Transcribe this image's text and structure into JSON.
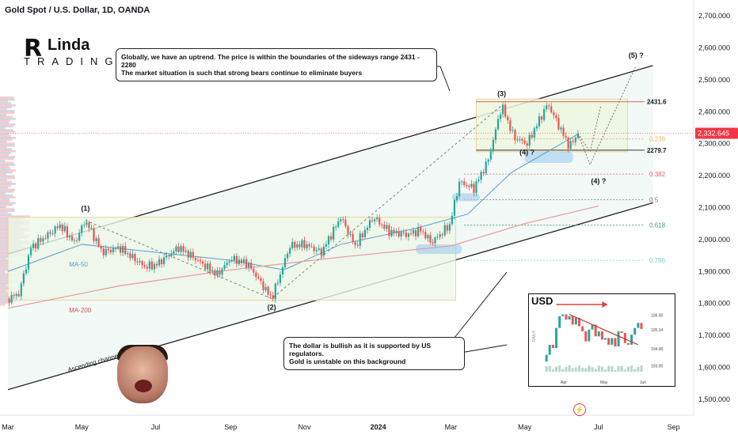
{
  "header": {
    "title": "Gold Spot / U.S. Dollar, 1D, OANDA"
  },
  "brand": {
    "logo_r": "R",
    "logo_inda": "Linda",
    "logo_trading": "TRADING"
  },
  "callouts": {
    "top_line1": "Globally, we have an uptrend. The price is within the boundaries of the sideways range 2431 - 2280",
    "top_line2": "The market situation is such that strong bears continue to eliminate buyers",
    "bottom_line1": "The dollar is bullish as it is supported by US regulators.",
    "bottom_line2": "Gold is unstable on this background"
  },
  "colors": {
    "up": "#26a69a",
    "down": "#ef5350",
    "price_tag": "#f23645",
    "ma50": "#5b9bd5",
    "ma200": "#e5a3a3"
  },
  "chart_data": {
    "type": "candlestick",
    "instrument": "Gold Spot / U.S. Dollar",
    "timeframe": "1D",
    "source": "OANDA",
    "ylim": [
      1450,
      2750
    ],
    "yticks": [
      1500,
      1600,
      1700,
      1800,
      1900,
      2000,
      2100,
      2200,
      2300,
      2400,
      2500,
      2600,
      2700
    ],
    "ytick_labels": [
      "1,500.000",
      "1,600.000",
      "1,700.000",
      "1,800.000",
      "1,900.000",
      "2,000.000",
      "2,100.000",
      "2,200.000",
      "2,300.000",
      "2,400.000",
      "2,500.000",
      "2,600.000",
      "2,700.000"
    ],
    "xlim": [
      "2023-03-01",
      "2024-09-15"
    ],
    "xticks": [
      {
        "date": "2023-03-01",
        "label": "Mar"
      },
      {
        "date": "2023-05-01",
        "label": "May"
      },
      {
        "date": "2023-07-01",
        "label": "Jul"
      },
      {
        "date": "2023-09-01",
        "label": "Sep"
      },
      {
        "date": "2023-11-01",
        "label": "Nov"
      },
      {
        "date": "2024-01-01",
        "label": "2024"
      },
      {
        "date": "2024-03-01",
        "label": "Mar"
      },
      {
        "date": "2024-05-01",
        "label": "May"
      },
      {
        "date": "2024-07-01",
        "label": "Jul"
      },
      {
        "date": "2024-09-01",
        "label": "Sep"
      }
    ],
    "price_path": [
      [
        "2023-03-01",
        1815
      ],
      [
        "2023-03-10",
        1830
      ],
      [
        "2023-03-20",
        1975
      ],
      [
        "2023-04-05",
        2020
      ],
      [
        "2023-04-13",
        2045
      ],
      [
        "2023-04-25",
        1990
      ],
      [
        "2023-05-04",
        2060
      ],
      [
        "2023-05-18",
        1960
      ],
      [
        "2023-06-01",
        1975
      ],
      [
        "2023-06-22",
        1915
      ],
      [
        "2023-07-01",
        1920
      ],
      [
        "2023-07-20",
        1975
      ],
      [
        "2023-08-01",
        1945
      ],
      [
        "2023-08-21",
        1890
      ],
      [
        "2023-09-01",
        1940
      ],
      [
        "2023-09-15",
        1925
      ],
      [
        "2023-10-05",
        1815
      ],
      [
        "2023-10-20",
        1980
      ],
      [
        "2023-11-01",
        1985
      ],
      [
        "2023-11-15",
        1960
      ],
      [
        "2023-12-01",
        2070
      ],
      [
        "2023-12-13",
        1980
      ],
      [
        "2023-12-28",
        2070
      ],
      [
        "2024-01-10",
        2025
      ],
      [
        "2024-01-25",
        2015
      ],
      [
        "2024-02-05",
        2030
      ],
      [
        "2024-02-14",
        1990
      ],
      [
        "2024-02-29",
        2045
      ],
      [
        "2024-03-08",
        2180
      ],
      [
        "2024-03-20",
        2160
      ],
      [
        "2024-04-01",
        2250
      ],
      [
        "2024-04-12",
        2420
      ],
      [
        "2024-04-22",
        2320
      ],
      [
        "2024-05-03",
        2300
      ],
      [
        "2024-05-20",
        2425
      ],
      [
        "2024-06-07",
        2290
      ],
      [
        "2024-06-14",
        2332.645
      ]
    ],
    "last_price": 2332.645,
    "last_price_label": "2,332.645",
    "range": {
      "high": 2431.6,
      "low": 2279.7,
      "high_label": "2431.6",
      "low_label": "2279.7"
    },
    "fib_levels": [
      {
        "label": "0.236",
        "value": 2315
      },
      {
        "label": "0.382",
        "value": 2205
      },
      {
        "label": "0.5",
        "value": 2125
      },
      {
        "label": "0.618",
        "value": 2045
      },
      {
        "label": "0.786",
        "value": 1935
      }
    ],
    "waves": [
      {
        "label": "(1)",
        "date": "2023-05-04",
        "value": 2060,
        "position": "above"
      },
      {
        "label": "(2)",
        "date": "2023-10-05",
        "value": 1815,
        "position": "below"
      },
      {
        "label": "(3)",
        "date": "2024-04-12",
        "value": 2420,
        "position": "above"
      },
      {
        "label": "(4) ?",
        "date": "2024-05-03",
        "value": 2300,
        "position": "below"
      },
      {
        "label": "(4) ?",
        "date": "2024-07-01",
        "value": 2210,
        "position": "below"
      },
      {
        "label": "(5) ?",
        "date": "2024-08-01",
        "value": 2540,
        "position": "above"
      }
    ],
    "channel": {
      "label": "Ascending channel",
      "upper": [
        [
          "2023-03-01",
          1955
        ],
        [
          "2024-08-15",
          2545
        ]
      ],
      "lower": [
        [
          "2023-03-01",
          1530
        ],
        [
          "2024-08-15",
          2115
        ]
      ]
    },
    "ma_labels": {
      "ma50": "MA-50",
      "ma200": "MA-200"
    },
    "inset": {
      "title": "USD",
      "side_label": "DAILY",
      "xtick_labels": [
        "Apr",
        "May",
        "Jun"
      ],
      "ytick_labels": [
        "106.00",
        "105.14",
        "104.00",
        "103.00"
      ],
      "ylim": [
        102.5,
        106.5
      ],
      "values": [
        103.2,
        103.6,
        104.2,
        104.0,
        105.2,
        105.9,
        106.0,
        105.7,
        105.9,
        105.4,
        105.8,
        105.3,
        105.0,
        104.4,
        105.1,
        105.4,
        104.7,
        105.0,
        104.5,
        104.6,
        104.2,
        104.6,
        104.1,
        105.0,
        104.9,
        104.3,
        104.2,
        104.8,
        105.2,
        105.5,
        105.14
      ]
    }
  }
}
